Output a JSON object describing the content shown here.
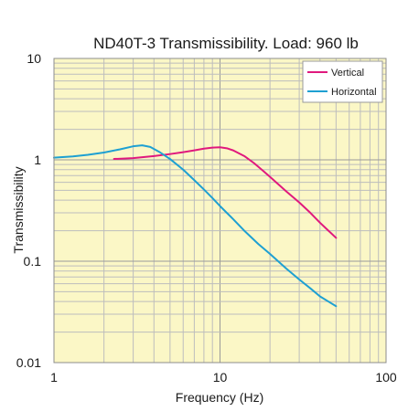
{
  "chart_data": {
    "type": "line",
    "title": "ND40T-3 Transmissibility. Load: 960 lb",
    "xlabel": "Frequency (Hz)",
    "ylabel": "Transmissibility",
    "xscale": "log",
    "yscale": "log",
    "xlim": [
      1,
      100
    ],
    "ylim": [
      0.01,
      10
    ],
    "xticks": [
      {
        "value": 1,
        "label": "1"
      },
      {
        "value": 10,
        "label": "10"
      },
      {
        "value": 100,
        "label": "100"
      }
    ],
    "yticks": [
      {
        "value": 0.01,
        "label": "0.01"
      },
      {
        "value": 0.1,
        "label": "0.1"
      },
      {
        "value": 1,
        "label": "1"
      },
      {
        "value": 10,
        "label": "10"
      }
    ],
    "grid": true,
    "background": "#fbf7c6",
    "legend_position": "top-right",
    "series": [
      {
        "name": "Vertical",
        "color": "#e0197d",
        "points": [
          [
            2.3,
            1.02
          ],
          [
            3.0,
            1.04
          ],
          [
            4.0,
            1.09
          ],
          [
            5.0,
            1.14
          ],
          [
            6.0,
            1.19
          ],
          [
            7.0,
            1.24
          ],
          [
            8.0,
            1.29
          ],
          [
            9.0,
            1.32
          ],
          [
            10.0,
            1.33
          ],
          [
            11.0,
            1.3
          ],
          [
            12.0,
            1.24
          ],
          [
            14.0,
            1.09
          ],
          [
            16.0,
            0.93
          ],
          [
            18.0,
            0.79
          ],
          [
            20.0,
            0.68
          ],
          [
            25.0,
            0.49
          ],
          [
            30.0,
            0.38
          ],
          [
            35.0,
            0.3
          ],
          [
            40.0,
            0.24
          ],
          [
            45.0,
            0.2
          ],
          [
            50.0,
            0.17
          ]
        ]
      },
      {
        "name": "Horizontal",
        "color": "#1ea0d2",
        "points": [
          [
            1.0,
            1.05
          ],
          [
            1.3,
            1.08
          ],
          [
            1.6,
            1.12
          ],
          [
            2.0,
            1.18
          ],
          [
            2.5,
            1.27
          ],
          [
            3.0,
            1.36
          ],
          [
            3.4,
            1.39
          ],
          [
            3.8,
            1.34
          ],
          [
            4.3,
            1.2
          ],
          [
            5.0,
            1.02
          ],
          [
            6.0,
            0.8
          ],
          [
            7.0,
            0.63
          ],
          [
            8.0,
            0.51
          ],
          [
            9.0,
            0.42
          ],
          [
            10.0,
            0.35
          ],
          [
            12.0,
            0.26
          ],
          [
            14.0,
            0.2
          ],
          [
            17.0,
            0.148
          ],
          [
            20.0,
            0.118
          ],
          [
            25.0,
            0.085
          ],
          [
            30.0,
            0.066
          ],
          [
            35.0,
            0.054
          ],
          [
            40.0,
            0.045
          ],
          [
            45.0,
            0.04
          ],
          [
            50.0,
            0.036
          ]
        ]
      }
    ]
  }
}
